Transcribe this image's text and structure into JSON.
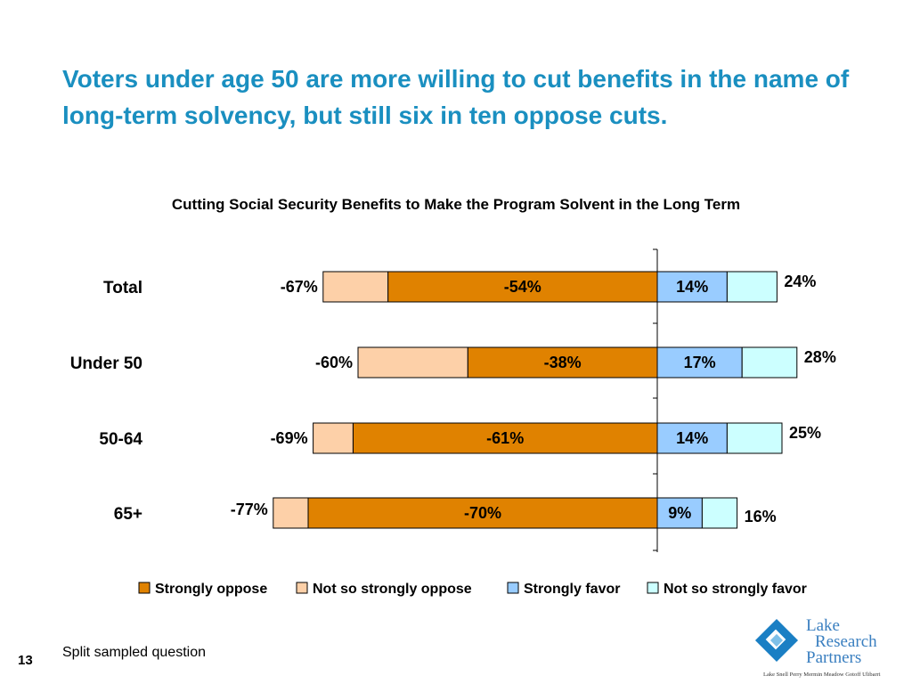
{
  "slide": {
    "headline": "Voters under age 50 are more willing to cut benefits in the name of long-term solvency, but still six in ten oppose cuts.",
    "footnote": "Split sampled question",
    "page_number": "13",
    "logo": {
      "line1": "Lake",
      "line2": "Research",
      "line3": "Partners",
      "names": "Lake  Snell  Perry  Mermin  Meadow  Gotoff  Ulibarri"
    }
  },
  "chart_data": {
    "type": "bar",
    "orientation": "horizontal-diverging",
    "title": "Cutting Social Security Benefits to Make the Program Solvent in the Long Term",
    "categories": [
      "Total",
      "Under 50",
      "50-64",
      "65+"
    ],
    "series": [
      {
        "name": "Strongly oppose",
        "values": [
          -54,
          -38,
          -61,
          -70
        ],
        "color": "#e08200"
      },
      {
        "name": "Not so strongly oppose",
        "values": [
          -13,
          -22,
          -8,
          -7
        ],
        "color": "#fdd0a8"
      },
      {
        "name": "Strongly favor",
        "values": [
          14,
          17,
          14,
          9
        ],
        "color": "#99ccff"
      },
      {
        "name": "Not so strongly favor",
        "values": [
          10,
          11,
          11,
          7
        ],
        "color": "#ccffff"
      }
    ],
    "labels": {
      "total_oppose": [
        "-67%",
        "-60%",
        "-69%",
        "-77%"
      ],
      "strongly_oppose": [
        "-54%",
        "-38%",
        "-61%",
        "-70%"
      ],
      "strongly_favor": [
        "14%",
        "17%",
        "14%",
        "9%"
      ],
      "total_favor": [
        "24%",
        "28%",
        "25%",
        "16%"
      ]
    },
    "legend": [
      "Strongly oppose",
      "Not so strongly oppose",
      "Strongly favor",
      "Not so strongly favor"
    ],
    "legend_position": "bottom",
    "grid": false
  }
}
